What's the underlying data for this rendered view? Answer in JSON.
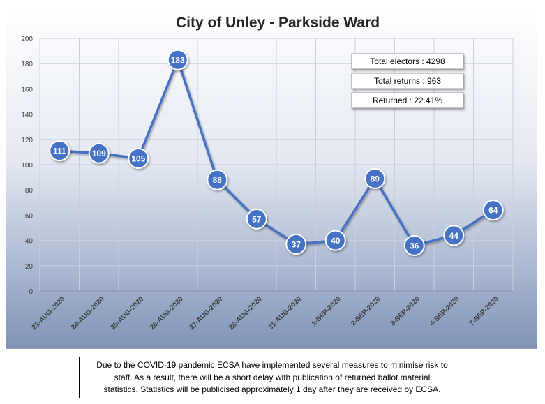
{
  "chart_data": {
    "type": "line",
    "title": "City of Unley - Parkside Ward",
    "categories": [
      "21-AUG-2020",
      "24-AUG-2020",
      "25-AUG-2020",
      "26-AUG-2020",
      "27-AUG-2020",
      "28-AUG-2020",
      "31-AUG-2020",
      "1-SEP-2020",
      "2-SEP-2020",
      "3-SEP-2020",
      "4-SEP-2020",
      "7-SEP-2020"
    ],
    "values": [
      111,
      109,
      105,
      183,
      88,
      57,
      37,
      40,
      89,
      36,
      44,
      64
    ],
    "ylim": [
      0,
      200
    ],
    "yticks": [
      0,
      20,
      40,
      60,
      80,
      100,
      120,
      140,
      160,
      180,
      200
    ],
    "xlabel": "",
    "ylabel": "",
    "grid": true,
    "colors": {
      "line": "#4472c4",
      "marker": "#4472c4",
      "marker_border": "#ffffff"
    },
    "annotations": [
      "Total electors : 4298",
      "Total returns : 963",
      "Returned : 22.41%"
    ]
  },
  "footer_note": {
    "line1": "Due to the COVID-19 pandemic ECSA have implemented several measures to minimise risk to",
    "line2": "staff. As a result, there will be a short delay with publication  of returned ballot material",
    "line3": "statistics. Statistics will be publicised  approximately 1 day after they are received by ECSA."
  }
}
